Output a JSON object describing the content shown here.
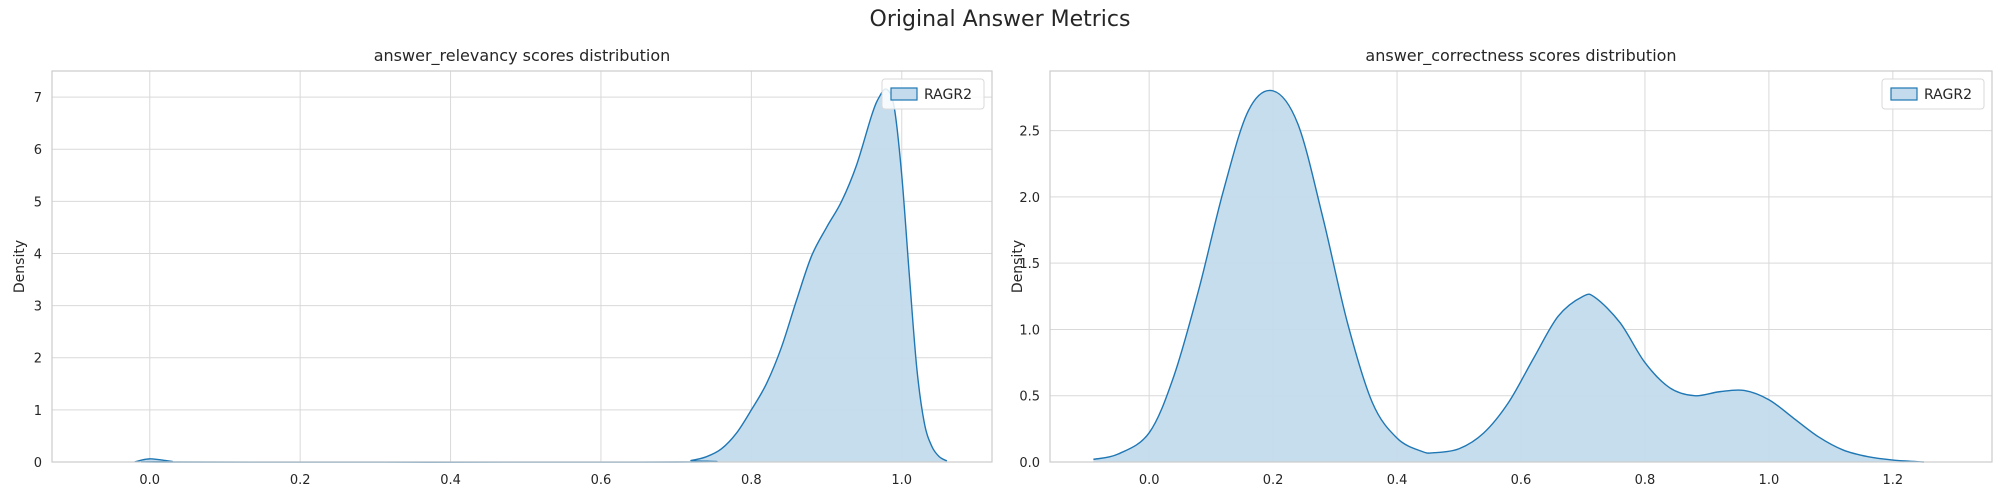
{
  "figure": {
    "title": "Original Answer Metrics"
  },
  "chart_data": [
    {
      "type": "area",
      "title": "answer_relevancy scores distribution",
      "xlabel": "",
      "ylabel": "Density",
      "xlim": [
        -0.13,
        1.12
      ],
      "ylim": [
        0,
        7.5
      ],
      "xticks": [
        0.0,
        0.2,
        0.4,
        0.6,
        0.8,
        1.0
      ],
      "xtick_labels": [
        "0.0",
        "0.2",
        "0.4",
        "0.6",
        "0.8",
        "1.0"
      ],
      "yticks": [
        0,
        1,
        2,
        3,
        4,
        5,
        6,
        7
      ],
      "ytick_labels": [
        "0",
        "1",
        "2",
        "3",
        "4",
        "5",
        "6",
        "7"
      ],
      "grid": true,
      "legend": {
        "position": "top-right",
        "entries": [
          "RAGR2"
        ]
      },
      "series": [
        {
          "name": "RAGR2",
          "color": "#1f77b4",
          "fill": "#c3dbec",
          "x": [
            -0.02,
            -0.01,
            0.0,
            0.01,
            0.02,
            0.03,
            0.04,
            0.7,
            0.72,
            0.74,
            0.76,
            0.78,
            0.8,
            0.82,
            0.84,
            0.86,
            0.88,
            0.9,
            0.92,
            0.94,
            0.96,
            0.97,
            0.98,
            0.99,
            1.0,
            1.01,
            1.02,
            1.03,
            1.04,
            1.05,
            1.06
          ],
          "y": [
            0,
            0.04,
            0.06,
            0.05,
            0.03,
            0.01,
            0,
            0,
            0.03,
            0.1,
            0.25,
            0.55,
            1.0,
            1.5,
            2.2,
            3.1,
            3.95,
            4.5,
            5.0,
            5.7,
            6.65,
            7.0,
            7.15,
            6.8,
            5.5,
            3.6,
            1.8,
            0.75,
            0.3,
            0.1,
            0.02
          ]
        }
      ]
    },
    {
      "type": "area",
      "title": "answer_correctness scores distribution",
      "xlabel": "",
      "ylabel": "Density",
      "xlim": [
        -0.16,
        1.36
      ],
      "ylim": [
        0,
        2.95
      ],
      "xticks": [
        0.0,
        0.2,
        0.4,
        0.6,
        0.8,
        1.0,
        1.2
      ],
      "xtick_labels": [
        "0.0",
        "0.2",
        "0.4",
        "0.6",
        "0.8",
        "1.0",
        "1.2"
      ],
      "yticks": [
        0.0,
        0.5,
        1.0,
        1.5,
        2.0,
        2.5
      ],
      "ytick_labels": [
        "0.0",
        "0.5",
        "1.0",
        "1.5",
        "2.0",
        "2.5"
      ],
      "grid": true,
      "legend": {
        "position": "top-right",
        "entries": [
          "RAGR2"
        ]
      },
      "series": [
        {
          "name": "RAGR2",
          "color": "#1f77b4",
          "fill": "#c3dbec",
          "x": [
            -0.09,
            -0.05,
            0.0,
            0.04,
            0.08,
            0.12,
            0.16,
            0.2,
            0.24,
            0.28,
            0.32,
            0.36,
            0.4,
            0.44,
            0.46,
            0.5,
            0.54,
            0.58,
            0.62,
            0.66,
            0.7,
            0.72,
            0.76,
            0.8,
            0.84,
            0.88,
            0.92,
            0.96,
            1.0,
            1.04,
            1.08,
            1.12,
            1.16,
            1.2,
            1.25
          ],
          "y": [
            0.02,
            0.06,
            0.22,
            0.65,
            1.3,
            2.05,
            2.65,
            2.8,
            2.55,
            1.85,
            1.05,
            0.45,
            0.18,
            0.08,
            0.07,
            0.1,
            0.22,
            0.45,
            0.78,
            1.1,
            1.25,
            1.24,
            1.05,
            0.75,
            0.56,
            0.5,
            0.53,
            0.54,
            0.47,
            0.33,
            0.19,
            0.09,
            0.04,
            0.015,
            0.0
          ]
        }
      ]
    }
  ]
}
